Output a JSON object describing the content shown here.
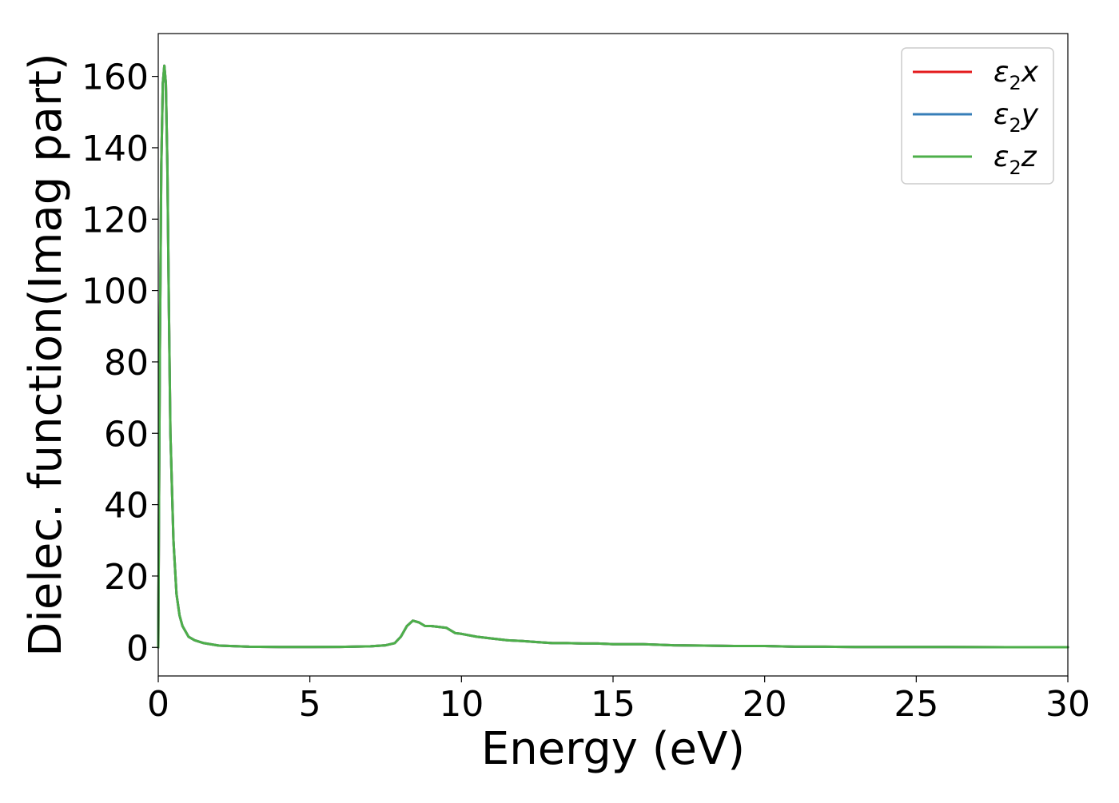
{
  "chart_data": {
    "type": "line",
    "title": "",
    "xlabel": "Energy (eV)",
    "ylabel": "Dielec. function(Imag part)",
    "xlim": [
      0,
      30
    ],
    "ylim": [
      -8,
      172
    ],
    "xticks": [
      0,
      5,
      10,
      15,
      20,
      25,
      30
    ],
    "xtick_labels": [
      "0",
      "5",
      "10",
      "15",
      "20",
      "25",
      "30"
    ],
    "yticks": [
      0,
      20,
      40,
      60,
      80,
      100,
      120,
      140,
      160
    ],
    "ytick_labels": [
      "0",
      "20",
      "40",
      "60",
      "80",
      "100",
      "120",
      "140",
      "160"
    ],
    "grid": false,
    "legend_position": "top-right",
    "x": [
      0,
      0.05,
      0.1,
      0.15,
      0.2,
      0.25,
      0.3,
      0.35,
      0.4,
      0.5,
      0.6,
      0.7,
      0.8,
      1.0,
      1.2,
      1.5,
      2.0,
      3.0,
      4.0,
      5.0,
      6.0,
      7.0,
      7.5,
      7.8,
      8.0,
      8.2,
      8.4,
      8.6,
      8.8,
      9.0,
      9.2,
      9.5,
      9.8,
      10.0,
      10.5,
      11.0,
      11.5,
      12.0,
      12.5,
      13.0,
      13.5,
      14.0,
      14.5,
      15.0,
      15.5,
      16.0,
      17.0,
      18.0,
      19.0,
      20.0,
      21.0,
      22.0,
      23.0,
      24.0,
      25.0,
      26.0,
      28.0,
      30.0
    ],
    "series": [
      {
        "name": "ε2x",
        "color": "#e41a1c",
        "values": [
          0,
          80,
          135,
          158,
          163,
          158,
          135,
          95,
          60,
          30,
          15,
          9,
          6,
          3,
          2,
          1.2,
          0.5,
          0.2,
          0.1,
          0.1,
          0.15,
          0.3,
          0.6,
          1.2,
          3,
          6,
          7.5,
          7,
          6,
          6,
          5.8,
          5.5,
          4,
          3.8,
          3,
          2.5,
          2,
          1.8,
          1.5,
          1.2,
          1.2,
          1.1,
          1.1,
          0.9,
          0.9,
          0.9,
          0.6,
          0.5,
          0.4,
          0.4,
          0.2,
          0.2,
          0.1,
          0.1,
          0.1,
          0.1,
          0.05,
          0.05
        ]
      },
      {
        "name": "ε2y",
        "color": "#377eb8",
        "values": [
          0,
          80,
          135,
          158,
          163,
          158,
          135,
          95,
          60,
          30,
          15,
          9,
          6,
          3,
          2,
          1.2,
          0.5,
          0.2,
          0.1,
          0.1,
          0.15,
          0.3,
          0.6,
          1.2,
          3,
          6,
          7.5,
          7,
          6,
          6,
          5.8,
          5.5,
          4,
          3.8,
          3,
          2.5,
          2,
          1.8,
          1.5,
          1.2,
          1.2,
          1.1,
          1.1,
          0.9,
          0.9,
          0.9,
          0.6,
          0.5,
          0.4,
          0.4,
          0.2,
          0.2,
          0.1,
          0.1,
          0.1,
          0.1,
          0.05,
          0.05
        ]
      },
      {
        "name": "ε2z",
        "color": "#4daf4a",
        "values": [
          0,
          80,
          135,
          158,
          163,
          158,
          135,
          95,
          60,
          30,
          15,
          9,
          6,
          3,
          2,
          1.2,
          0.5,
          0.2,
          0.1,
          0.1,
          0.15,
          0.3,
          0.6,
          1.2,
          3,
          6,
          7.5,
          7,
          6,
          6,
          5.8,
          5.5,
          4,
          3.8,
          3,
          2.5,
          2,
          1.8,
          1.5,
          1.2,
          1.2,
          1.1,
          1.1,
          0.9,
          0.9,
          0.9,
          0.6,
          0.5,
          0.4,
          0.4,
          0.2,
          0.2,
          0.1,
          0.1,
          0.1,
          0.1,
          0.05,
          0.05
        ]
      }
    ],
    "legend": [
      {
        "main": "ε",
        "sub": "2",
        "suffix": "x"
      },
      {
        "main": "ε",
        "sub": "2",
        "suffix": "y"
      },
      {
        "main": "ε",
        "sub": "2",
        "suffix": "z"
      }
    ]
  }
}
